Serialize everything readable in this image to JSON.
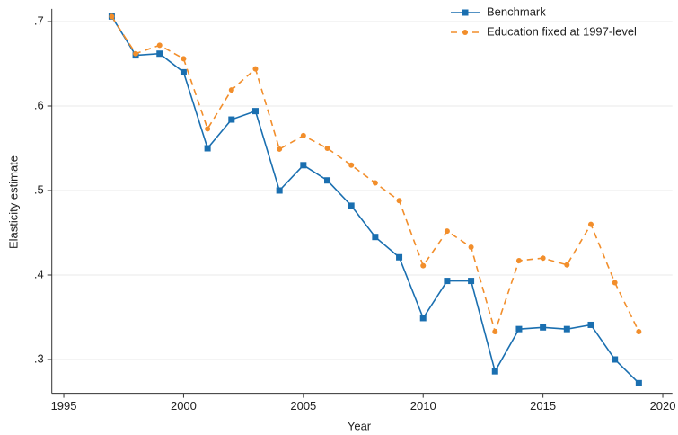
{
  "chart_data": {
    "type": "line",
    "xlabel": "Year",
    "ylabel": "Elasticity estimate",
    "x": [
      1997,
      1998,
      1999,
      2000,
      2001,
      2002,
      2003,
      2004,
      2005,
      2006,
      2007,
      2008,
      2009,
      2010,
      2011,
      2012,
      2013,
      2014,
      2015,
      2016,
      2017,
      2018,
      2019
    ],
    "series": [
      {
        "name": "Benchmark",
        "color": "#1a6fb0",
        "marker": "square",
        "dash": "solid",
        "values": [
          0.706,
          0.66,
          0.662,
          0.64,
          0.55,
          0.584,
          0.594,
          0.5,
          0.53,
          0.512,
          0.482,
          0.445,
          0.421,
          0.349,
          0.393,
          0.393,
          0.286,
          0.336,
          0.338,
          0.336,
          0.341,
          0.3,
          0.272
        ]
      },
      {
        "name": "Education fixed at 1997-level",
        "color": "#f28e2b",
        "marker": "circle",
        "dash": "dashed",
        "values": [
          0.706,
          0.662,
          0.672,
          0.656,
          0.573,
          0.619,
          0.644,
          0.549,
          0.565,
          0.55,
          0.53,
          0.509,
          0.488,
          0.411,
          0.452,
          0.433,
          0.333,
          0.417,
          0.42,
          0.412,
          0.46,
          0.391,
          0.333
        ]
      }
    ],
    "xlim": [
      1994.5,
      2020.4
    ],
    "xticks": [
      1995,
      2000,
      2005,
      2010,
      2015,
      2020
    ],
    "ylim": [
      0.26,
      0.715
    ],
    "yticks": [
      {
        "value": 0.3,
        "label": ".3"
      },
      {
        "value": 0.4,
        "label": ".4"
      },
      {
        "value": 0.5,
        "label": ".5"
      },
      {
        "value": 0.6,
        "label": ".6"
      },
      {
        "value": 0.7,
        "label": ".7"
      }
    ],
    "grid": true,
    "legend": "top-right"
  }
}
